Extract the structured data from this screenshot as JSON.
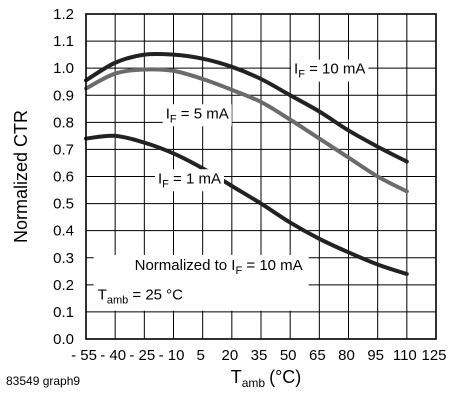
{
  "figure_id": "83549 graph9",
  "chart_data": {
    "type": "line",
    "ylabel": "Normalized CTR",
    "xlabel_main": "T",
    "xlabel_sub": "amb",
    "xlabel_unit": "(°C)",
    "xlim": [
      -55,
      125
    ],
    "ylim": [
      0.0,
      1.2
    ],
    "x_ticks": [
      -55,
      -40,
      -25,
      -10,
      5,
      20,
      35,
      50,
      65,
      80,
      95,
      110,
      125
    ],
    "x_tick_labels": [
      "- 55",
      "- 40",
      "- 25",
      "- 10",
      "5",
      "20",
      "35",
      "50",
      "65",
      "80",
      "95",
      "110",
      "125"
    ],
    "y_ticks": [
      0.0,
      0.1,
      0.2,
      0.3,
      0.4,
      0.5,
      0.6,
      0.7,
      0.8,
      0.9,
      1.0,
      1.1,
      1.2
    ],
    "y_tick_labels": [
      "0.0",
      "0.1",
      "0.2",
      "0.3",
      "0.4",
      "0.5",
      "0.6",
      "0.7",
      "0.8",
      "0.9",
      "1.0",
      "1.1",
      "1.2"
    ],
    "grid": true,
    "series": [
      {
        "color": "#222222",
        "label_main": "I",
        "label_sub": "F",
        "label_rest": " = 10 mA",
        "x": [
          -55,
          -40,
          -25,
          -10,
          5,
          20,
          35,
          50,
          65,
          80,
          95,
          110
        ],
        "y": [
          0.955,
          1.02,
          1.05,
          1.05,
          1.035,
          1.005,
          0.96,
          0.9,
          0.84,
          0.77,
          0.71,
          0.655
        ]
      },
      {
        "color": "#6b6b6b",
        "label_main": "I",
        "label_sub": "F",
        "label_rest": " = 5 mA",
        "x": [
          -55,
          -40,
          -25,
          -10,
          5,
          20,
          35,
          50,
          65,
          80,
          95,
          110
        ],
        "y": [
          0.925,
          0.98,
          0.995,
          0.99,
          0.96,
          0.92,
          0.875,
          0.81,
          0.74,
          0.67,
          0.6,
          0.545
        ]
      },
      {
        "color": "#222222",
        "label_main": "I",
        "label_sub": "F",
        "label_rest": " = 1 mA",
        "x": [
          -55,
          -40,
          -25,
          -10,
          5,
          20,
          35,
          50,
          65,
          80,
          95,
          110
        ],
        "y": [
          0.74,
          0.75,
          0.725,
          0.685,
          0.63,
          0.565,
          0.5,
          0.43,
          0.37,
          0.32,
          0.275,
          0.24
        ]
      }
    ],
    "note": {
      "line1_main": "Normalized to I",
      "line1_sub": "F",
      "line1_rest": " = 10 mA",
      "line2_main": "T",
      "line2_sub": "amb",
      "line2_rest": " = 25 °C"
    }
  }
}
